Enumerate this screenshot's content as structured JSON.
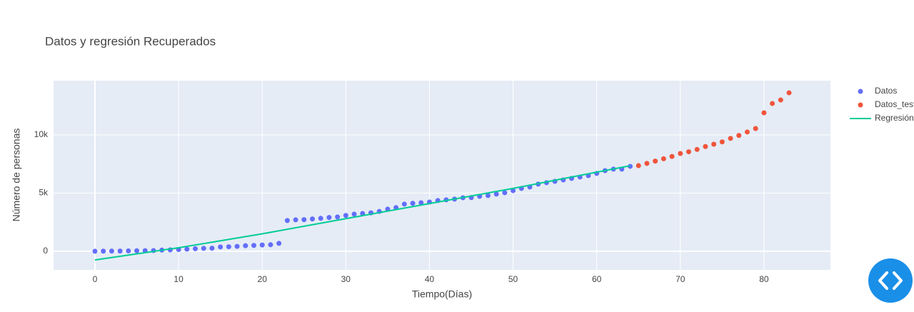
{
  "chart_data": {
    "type": "scatter",
    "title": "Datos y regresión Recuperados",
    "x_label": "Tiempo(Días)",
    "y_label": "Número de personas",
    "xlim": [
      -4.95,
      87.95
    ],
    "xticks": [
      0,
      10,
      20,
      30,
      40,
      50,
      60,
      70,
      80
    ],
    "ylim": [
      -1600,
      14660
    ],
    "yticks": [
      0,
      {
        "value": 5000,
        "label": "5k"
      },
      {
        "value": 10000,
        "label": "10k"
      }
    ],
    "grid": true,
    "legend": "right",
    "series": [
      {
        "name": "Datos",
        "color": "#636efa",
        "mode": "markers",
        "x": [
          0,
          1,
          2,
          3,
          4,
          5,
          6,
          7,
          8,
          9,
          10,
          11,
          12,
          13,
          14,
          15,
          16,
          17,
          18,
          19,
          20,
          21,
          22,
          23,
          24,
          25,
          26,
          27,
          28,
          29,
          30,
          31,
          32,
          33,
          34,
          35,
          36,
          37,
          38,
          39,
          40,
          41,
          42,
          43,
          44,
          45,
          46,
          47,
          48,
          49,
          50,
          51,
          52,
          53,
          54,
          55,
          56,
          57,
          58,
          59,
          60,
          61,
          62,
          63,
          64
        ],
        "values": [
          0,
          10,
          15,
          20,
          30,
          40,
          50,
          60,
          100,
          120,
          150,
          180,
          220,
          250,
          260,
          370,
          390,
          420,
          480,
          500,
          540,
          560,
          680,
          2640,
          2700,
          2720,
          2780,
          2830,
          2900,
          2950,
          3080,
          3190,
          3250,
          3300,
          3420,
          3620,
          3750,
          4050,
          4120,
          4170,
          4230,
          4360,
          4420,
          4480,
          4600,
          4610,
          4720,
          4790,
          4910,
          5030,
          5210,
          5400,
          5520,
          5770,
          5890,
          6010,
          6130,
          6260,
          6380,
          6500,
          6690,
          6930,
          7060,
          7060,
          7300
        ]
      },
      {
        "name": "Datos_test",
        "color": "#ef553b",
        "mode": "markers",
        "x": [
          65,
          66,
          67,
          68,
          69,
          70,
          71,
          72,
          73,
          74,
          75,
          76,
          77,
          78,
          79,
          80,
          81,
          82,
          83
        ],
        "values": [
          7360,
          7550,
          7750,
          7950,
          8150,
          8400,
          8550,
          8750,
          9000,
          9200,
          9400,
          9700,
          9950,
          10250,
          10550,
          11900,
          12700,
          13000,
          13620
        ]
      },
      {
        "name": "Regresión",
        "color": "#00cc96",
        "mode": "lines",
        "x": [
          0,
          10,
          20,
          30,
          40,
          50,
          60,
          64
        ],
        "values": [
          -750,
          300,
          1500,
          2800,
          4100,
          5400,
          6800,
          7350
        ]
      }
    ]
  }
}
